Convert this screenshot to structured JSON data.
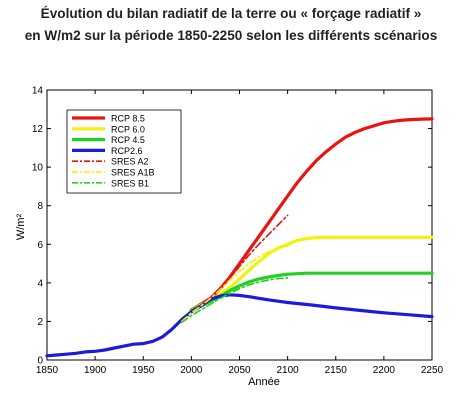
{
  "chart_data": {
    "type": "line",
    "title_lines": [
      "Évolution du bilan radiatif de la terre ou « forçage radiatif »",
      "en W/m2 sur la période 1850-2250 selon les différents scénarios"
    ],
    "xlabel": "Année",
    "ylabel": "W/m²",
    "xlim": [
      1850,
      2250
    ],
    "ylim": [
      0,
      14
    ],
    "xticks": [
      "1850",
      "1900",
      "1950",
      "2000",
      "2050",
      "2100",
      "2150",
      "2200",
      "2250"
    ],
    "yticks": [
      "0",
      "2",
      "4",
      "6",
      "8",
      "10",
      "12",
      "14"
    ],
    "grid": false,
    "legend_position": "top-left",
    "series": [
      {
        "name": "RCP 8.5",
        "color": "#e8140f",
        "style": "solid",
        "points": [
          [
            2000,
            2.6
          ],
          [
            2010,
            2.9
          ],
          [
            2020,
            3.2
          ],
          [
            2030,
            3.7
          ],
          [
            2040,
            4.3
          ],
          [
            2050,
            5.0
          ],
          [
            2060,
            5.7
          ],
          [
            2070,
            6.4
          ],
          [
            2080,
            7.1
          ],
          [
            2090,
            7.8
          ],
          [
            2100,
            8.5
          ],
          [
            2110,
            9.2
          ],
          [
            2120,
            9.8
          ],
          [
            2130,
            10.35
          ],
          [
            2140,
            10.8
          ],
          [
            2150,
            11.2
          ],
          [
            2160,
            11.55
          ],
          [
            2170,
            11.8
          ],
          [
            2180,
            12.0
          ],
          [
            2190,
            12.15
          ],
          [
            2200,
            12.3
          ],
          [
            2210,
            12.38
          ],
          [
            2220,
            12.44
          ],
          [
            2230,
            12.47
          ],
          [
            2240,
            12.49
          ],
          [
            2250,
            12.5
          ]
        ]
      },
      {
        "name": "RCP 6.0",
        "color": "#f2f20a",
        "style": "solid",
        "points": [
          [
            2000,
            2.6
          ],
          [
            2010,
            2.85
          ],
          [
            2020,
            3.1
          ],
          [
            2030,
            3.4
          ],
          [
            2040,
            3.75
          ],
          [
            2050,
            4.2
          ],
          [
            2060,
            4.65
          ],
          [
            2070,
            5.1
          ],
          [
            2080,
            5.5
          ],
          [
            2090,
            5.8
          ],
          [
            2100,
            6.0
          ],
          [
            2110,
            6.2
          ],
          [
            2120,
            6.3
          ],
          [
            2130,
            6.35
          ],
          [
            2150,
            6.36
          ],
          [
            2200,
            6.36
          ],
          [
            2250,
            6.36
          ]
        ]
      },
      {
        "name": "RCP 4.5",
        "color": "#22d020",
        "style": "solid",
        "points": [
          [
            2000,
            2.6
          ],
          [
            2010,
            2.8
          ],
          [
            2020,
            3.05
          ],
          [
            2030,
            3.3
          ],
          [
            2040,
            3.6
          ],
          [
            2050,
            3.85
          ],
          [
            2060,
            4.05
          ],
          [
            2070,
            4.2
          ],
          [
            2080,
            4.3
          ],
          [
            2090,
            4.38
          ],
          [
            2100,
            4.45
          ],
          [
            2120,
            4.5
          ],
          [
            2150,
            4.5
          ],
          [
            2200,
            4.5
          ],
          [
            2250,
            4.5
          ]
        ]
      },
      {
        "name": "RCP2.6",
        "color": "#1b1bd8",
        "style": "solid",
        "points": [
          [
            1850,
            0.22
          ],
          [
            1860,
            0.26
          ],
          [
            1870,
            0.3
          ],
          [
            1880,
            0.35
          ],
          [
            1890,
            0.42
          ],
          [
            1900,
            0.45
          ],
          [
            1910,
            0.52
          ],
          [
            1920,
            0.62
          ],
          [
            1930,
            0.72
          ],
          [
            1940,
            0.82
          ],
          [
            1950,
            0.85
          ],
          [
            1960,
            0.97
          ],
          [
            1970,
            1.2
          ],
          [
            1980,
            1.6
          ],
          [
            1990,
            2.1
          ],
          [
            2000,
            2.5
          ],
          [
            2010,
            2.8
          ],
          [
            2020,
            3.15
          ],
          [
            2030,
            3.32
          ],
          [
            2040,
            3.38
          ],
          [
            2050,
            3.35
          ],
          [
            2060,
            3.28
          ],
          [
            2070,
            3.2
          ],
          [
            2080,
            3.12
          ],
          [
            2090,
            3.05
          ],
          [
            2100,
            2.98
          ],
          [
            2125,
            2.85
          ],
          [
            2150,
            2.7
          ],
          [
            2175,
            2.57
          ],
          [
            2200,
            2.45
          ],
          [
            2225,
            2.35
          ],
          [
            2250,
            2.25
          ]
        ]
      },
      {
        "name": "SRES A2",
        "color": "#e8140f",
        "style": "dashdot",
        "points": [
          [
            1990,
            2.0
          ],
          [
            2000,
            2.45
          ],
          [
            2010,
            2.8
          ],
          [
            2020,
            3.2
          ],
          [
            2030,
            3.7
          ],
          [
            2040,
            4.25
          ],
          [
            2050,
            4.85
          ],
          [
            2060,
            5.45
          ],
          [
            2070,
            6.0
          ],
          [
            2080,
            6.5
          ],
          [
            2090,
            7.0
          ],
          [
            2100,
            7.5
          ]
        ]
      },
      {
        "name": "SRES A1B",
        "color": "#f2f20a",
        "style": "dashdot",
        "points": [
          [
            1990,
            2.0
          ],
          [
            2000,
            2.45
          ],
          [
            2010,
            2.8
          ],
          [
            2020,
            3.2
          ],
          [
            2030,
            3.65
          ],
          [
            2040,
            4.15
          ],
          [
            2050,
            4.6
          ],
          [
            2060,
            5.0
          ],
          [
            2070,
            5.35
          ],
          [
            2080,
            5.6
          ],
          [
            2090,
            5.8
          ],
          [
            2100,
            5.9
          ]
        ]
      },
      {
        "name": "SRES B1",
        "color": "#22d020",
        "style": "dashdot",
        "points": [
          [
            1990,
            1.95
          ],
          [
            2000,
            2.3
          ],
          [
            2010,
            2.6
          ],
          [
            2020,
            2.9
          ],
          [
            2030,
            3.2
          ],
          [
            2040,
            3.45
          ],
          [
            2050,
            3.7
          ],
          [
            2060,
            3.9
          ],
          [
            2070,
            4.05
          ],
          [
            2080,
            4.15
          ],
          [
            2090,
            4.22
          ],
          [
            2100,
            4.25
          ]
        ]
      }
    ]
  }
}
